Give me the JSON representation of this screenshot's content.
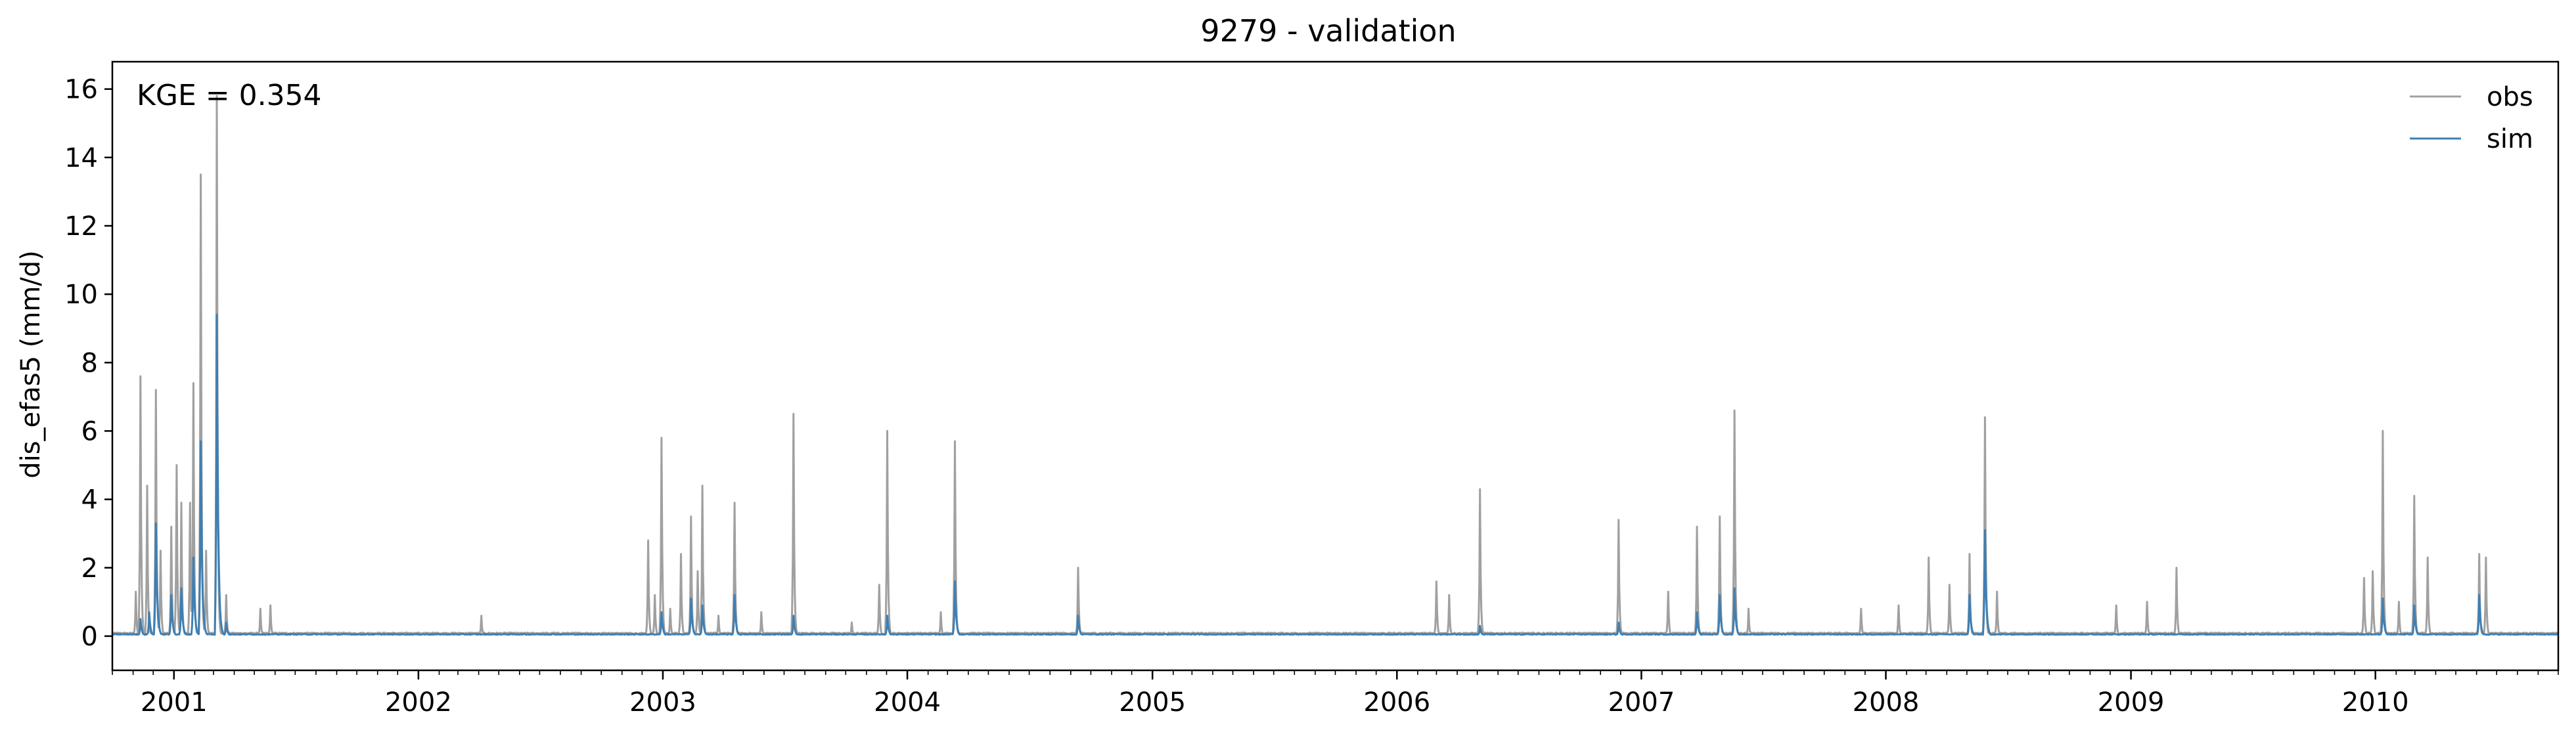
{
  "chart_data": {
    "type": "line",
    "title": "9279 - validation",
    "xlabel": "",
    "ylabel": "dis_efas5 (mm/d)",
    "annotation": "KGE = 0.354",
    "x_range": [
      "2000-10-01",
      "2010-10-01"
    ],
    "ylim": [
      -1,
      16.8
    ],
    "yticks": [
      0,
      2,
      4,
      6,
      8,
      10,
      12,
      14,
      16
    ],
    "xticks": [
      "2001-01-01",
      "2002-01-01",
      "2003-01-01",
      "2004-01-01",
      "2005-01-01",
      "2006-01-01",
      "2007-01-01",
      "2008-01-01",
      "2009-01-01",
      "2010-01-01"
    ],
    "xtick_labels": [
      "2001",
      "2002",
      "2003",
      "2004",
      "2005",
      "2006",
      "2007",
      "2008",
      "2009",
      "2010"
    ],
    "grid": false,
    "legend": {
      "position": "top-right",
      "entries": [
        "obs",
        "sim"
      ]
    },
    "colors": {
      "obs": "#a0a0a0",
      "sim": "#3f7fb3"
    },
    "series": [
      {
        "name": "obs",
        "baseline": 0.08,
        "peaks": [
          [
            "2000-11-05",
            1.3
          ],
          [
            "2000-11-12",
            7.6
          ],
          [
            "2000-11-22",
            4.4
          ],
          [
            "2000-12-05",
            7.2
          ],
          [
            "2000-12-12",
            2.5
          ],
          [
            "2000-12-28",
            3.2
          ],
          [
            "2001-01-05",
            5.0
          ],
          [
            "2001-01-12",
            3.9
          ],
          [
            "2001-01-25",
            3.9
          ],
          [
            "2001-01-30",
            7.4
          ],
          [
            "2001-02-10",
            13.5
          ],
          [
            "2001-02-18",
            2.5
          ],
          [
            "2001-03-06",
            15.8
          ],
          [
            "2001-03-20",
            1.2
          ],
          [
            "2001-05-10",
            0.8
          ],
          [
            "2001-05-25",
            0.9
          ],
          [
            "2002-04-05",
            0.6
          ],
          [
            "2002-12-10",
            2.8
          ],
          [
            "2002-12-20",
            1.2
          ],
          [
            "2002-12-30",
            5.8
          ],
          [
            "2003-01-12",
            0.8
          ],
          [
            "2003-01-28",
            2.4
          ],
          [
            "2003-02-12",
            3.5
          ],
          [
            "2003-02-22",
            1.9
          ],
          [
            "2003-03-01",
            4.4
          ],
          [
            "2003-03-25",
            0.6
          ],
          [
            "2003-04-18",
            3.9
          ],
          [
            "2003-05-28",
            0.7
          ],
          [
            "2003-07-15",
            6.5
          ],
          [
            "2003-10-10",
            0.4
          ],
          [
            "2003-11-20",
            1.5
          ],
          [
            "2003-12-02",
            6.0
          ],
          [
            "2004-02-20",
            0.7
          ],
          [
            "2004-03-12",
            5.7
          ],
          [
            "2004-09-12",
            2.0
          ],
          [
            "2006-03-01",
            1.6
          ],
          [
            "2006-03-20",
            1.2
          ],
          [
            "2006-05-05",
            4.3
          ],
          [
            "2006-11-28",
            3.4
          ],
          [
            "2007-02-10",
            1.3
          ],
          [
            "2007-03-25",
            3.2
          ],
          [
            "2007-04-28",
            3.5
          ],
          [
            "2007-05-20",
            6.6
          ],
          [
            "2007-06-10",
            0.8
          ],
          [
            "2007-11-25",
            0.8
          ],
          [
            "2008-01-20",
            0.9
          ],
          [
            "2008-03-05",
            2.3
          ],
          [
            "2008-04-05",
            1.5
          ],
          [
            "2008-05-05",
            2.4
          ],
          [
            "2008-05-28",
            6.4
          ],
          [
            "2008-06-15",
            1.3
          ],
          [
            "2008-12-10",
            0.9
          ],
          [
            "2009-01-25",
            1.0
          ],
          [
            "2009-03-10",
            2.0
          ],
          [
            "2009-12-15",
            1.7
          ],
          [
            "2009-12-28",
            1.9
          ],
          [
            "2010-01-12",
            6.0
          ],
          [
            "2010-02-05",
            1.0
          ],
          [
            "2010-02-28",
            4.1
          ],
          [
            "2010-03-20",
            2.3
          ],
          [
            "2010-06-05",
            2.4
          ],
          [
            "2010-06-15",
            2.3
          ]
        ]
      },
      {
        "name": "sim",
        "baseline": 0.05,
        "peaks": [
          [
            "2000-11-12",
            0.5
          ],
          [
            "2000-11-25",
            0.7
          ],
          [
            "2000-12-05",
            3.3
          ],
          [
            "2000-12-28",
            1.2
          ],
          [
            "2001-01-12",
            1.4
          ],
          [
            "2001-01-30",
            2.3
          ],
          [
            "2001-02-10",
            5.7
          ],
          [
            "2001-03-06",
            9.4
          ],
          [
            "2001-03-20",
            0.4
          ],
          [
            "2002-12-30",
            0.7
          ],
          [
            "2003-02-12",
            1.1
          ],
          [
            "2003-03-01",
            0.9
          ],
          [
            "2003-04-18",
            1.2
          ],
          [
            "2003-07-15",
            0.6
          ],
          [
            "2003-12-02",
            0.6
          ],
          [
            "2004-03-12",
            1.6
          ],
          [
            "2004-09-12",
            0.6
          ],
          [
            "2006-05-05",
            0.3
          ],
          [
            "2006-11-28",
            0.4
          ],
          [
            "2007-03-25",
            0.7
          ],
          [
            "2007-04-28",
            1.2
          ],
          [
            "2007-05-20",
            1.4
          ],
          [
            "2008-05-05",
            1.2
          ],
          [
            "2008-05-28",
            3.1
          ],
          [
            "2010-01-12",
            1.1
          ],
          [
            "2010-02-28",
            0.9
          ],
          [
            "2010-06-05",
            1.2
          ]
        ]
      }
    ]
  }
}
